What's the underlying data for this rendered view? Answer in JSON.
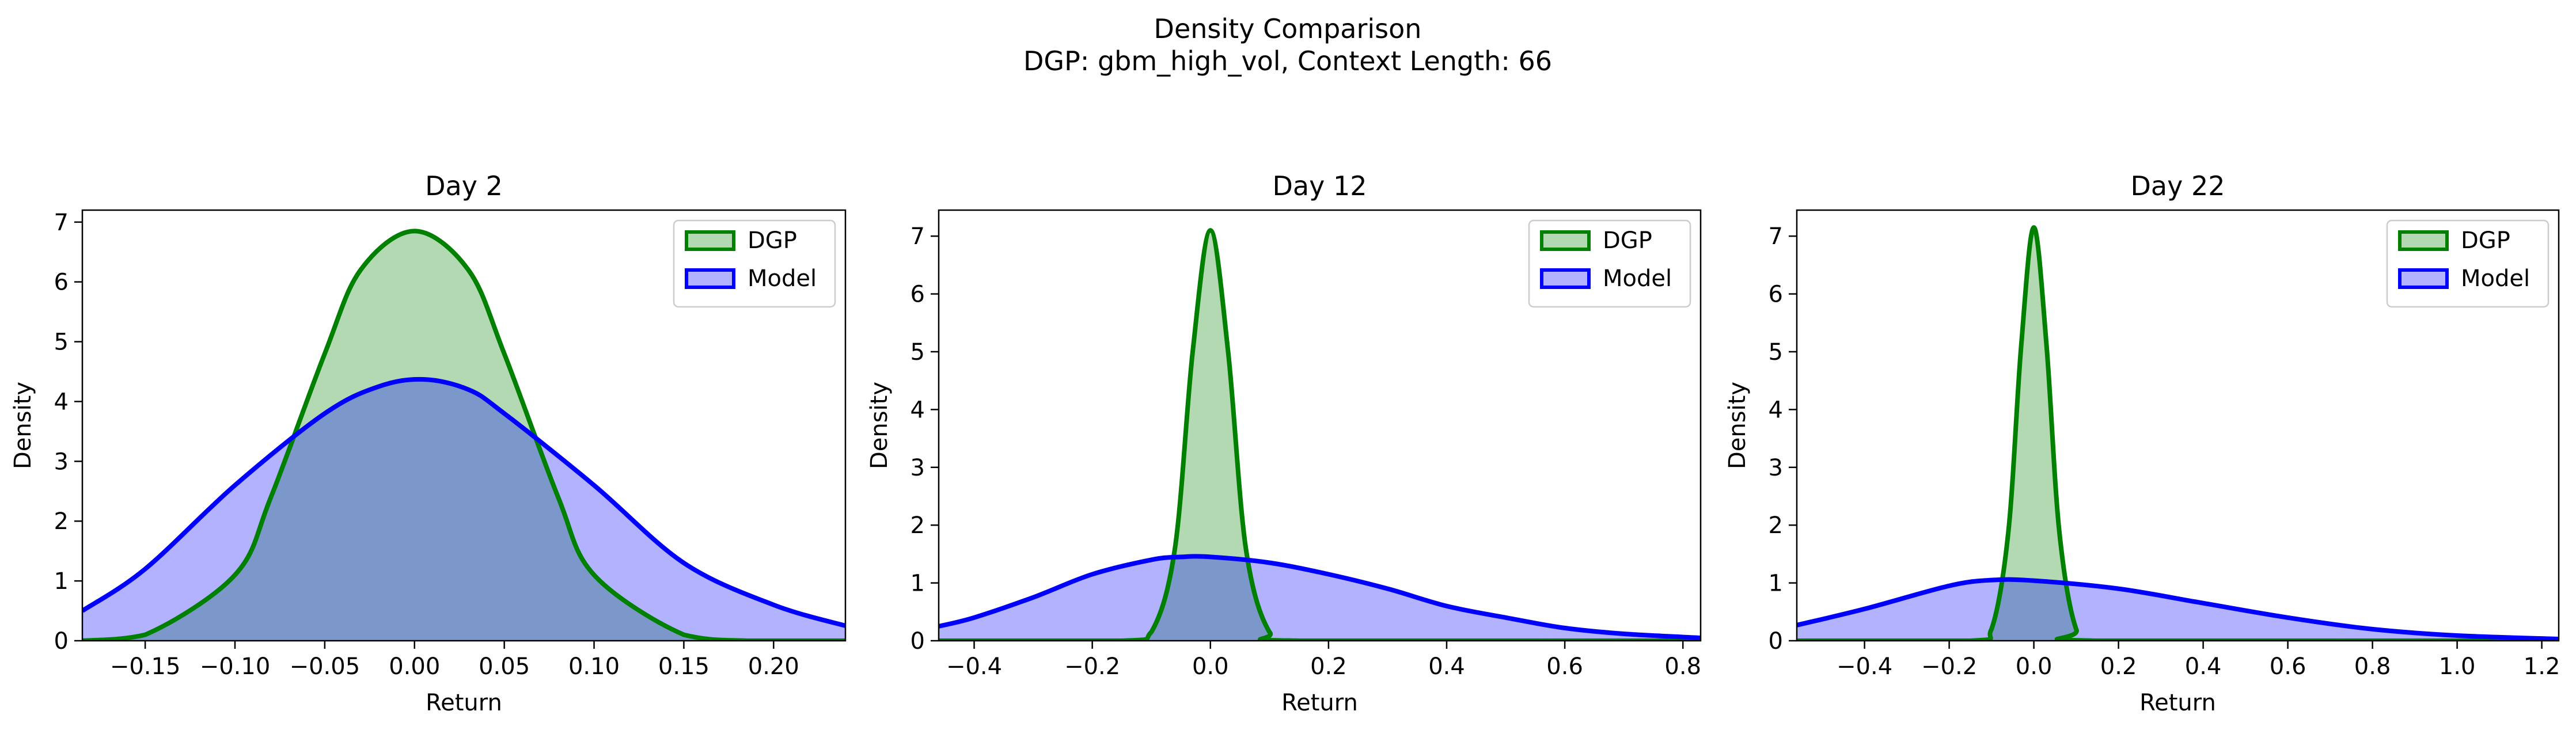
{
  "figure": {
    "title": "Density Comparison",
    "subtitle": "DGP: gbm_high_vol, Context Length: 66"
  },
  "colors": {
    "dgp": "#008000",
    "model": "#0000ff",
    "dgp_fill": "#008000",
    "model_fill": "#0000ff"
  },
  "chart_data": [
    {
      "type": "area",
      "title": "Day 2",
      "xlabel": "Return",
      "ylabel": "Density",
      "xlim": [
        -0.185,
        0.24
      ],
      "ylim": [
        0,
        7.2
      ],
      "xticks": [
        -0.15,
        -0.1,
        -0.05,
        0.0,
        0.05,
        0.1,
        0.15,
        0.2
      ],
      "xtick_labels": [
        "−0.15",
        "−0.10",
        "−0.05",
        "0.00",
        "0.05",
        "0.10",
        "0.15",
        "0.20"
      ],
      "yticks": [
        0,
        1,
        2,
        3,
        4,
        5,
        6,
        7
      ],
      "ytick_labels": [
        "0",
        "1",
        "2",
        "3",
        "4",
        "5",
        "6",
        "7"
      ],
      "legend": "top-right",
      "series": [
        {
          "name": "DGP",
          "x": [
            -0.185,
            -0.15,
            -0.1,
            -0.08,
            -0.05,
            -0.03,
            0.0,
            0.03,
            0.05,
            0.08,
            0.1,
            0.15,
            0.185,
            0.24
          ],
          "y": [
            0.0,
            0.1,
            1.1,
            2.4,
            4.8,
            6.2,
            6.85,
            6.2,
            4.8,
            2.4,
            1.1,
            0.1,
            0.0,
            0.0
          ]
        },
        {
          "name": "Model",
          "x": [
            -0.185,
            -0.15,
            -0.1,
            -0.05,
            -0.02,
            0.005,
            0.03,
            0.05,
            0.1,
            0.15,
            0.2,
            0.24
          ],
          "y": [
            0.5,
            1.2,
            2.6,
            3.8,
            4.25,
            4.37,
            4.2,
            3.8,
            2.6,
            1.3,
            0.6,
            0.25
          ]
        }
      ]
    },
    {
      "type": "area",
      "title": "Day 12",
      "xlabel": "Return",
      "ylabel": "Density",
      "xlim": [
        -0.46,
        0.83
      ],
      "ylim": [
        0,
        7.45
      ],
      "xticks": [
        -0.4,
        -0.2,
        0.0,
        0.2,
        0.4,
        0.6,
        0.8
      ],
      "xtick_labels": [
        "−0.4",
        "−0.2",
        "0.0",
        "0.2",
        "0.4",
        "0.6",
        "0.8"
      ],
      "yticks": [
        0,
        1,
        2,
        3,
        4,
        5,
        6,
        7
      ],
      "ytick_labels": [
        "0",
        "1",
        "2",
        "3",
        "4",
        "5",
        "6",
        "7"
      ],
      "legend": "top-right",
      "series": [
        {
          "name": "DGP",
          "x": [
            -0.46,
            -0.15,
            -0.1,
            -0.06,
            -0.03,
            0.0,
            0.03,
            0.06,
            0.1,
            0.15,
            0.83
          ],
          "y": [
            0.0,
            0.0,
            0.15,
            1.6,
            5.0,
            7.1,
            5.0,
            1.6,
            0.15,
            0.0,
            0.0
          ]
        },
        {
          "name": "Model",
          "x": [
            -0.46,
            -0.4,
            -0.3,
            -0.2,
            -0.1,
            -0.05,
            0.0,
            0.1,
            0.2,
            0.3,
            0.4,
            0.5,
            0.6,
            0.7,
            0.83
          ],
          "y": [
            0.25,
            0.4,
            0.75,
            1.15,
            1.4,
            1.45,
            1.45,
            1.35,
            1.15,
            0.9,
            0.6,
            0.4,
            0.22,
            0.12,
            0.05
          ]
        }
      ]
    },
    {
      "type": "area",
      "title": "Day 22",
      "xlabel": "Return",
      "ylabel": "Density",
      "xlim": [
        -0.56,
        1.24
      ],
      "ylim": [
        0,
        7.45
      ],
      "xticks": [
        -0.4,
        -0.2,
        0.0,
        0.2,
        0.4,
        0.6,
        0.8,
        1.0,
        1.2
      ],
      "xtick_labels": [
        "−0.4",
        "−0.2",
        "0.0",
        "0.2",
        "0.4",
        "0.6",
        "0.8",
        "1.0",
        "1.2"
      ],
      "yticks": [
        0,
        1,
        2,
        3,
        4,
        5,
        6,
        7
      ],
      "ytick_labels": [
        "0",
        "1",
        "2",
        "3",
        "4",
        "5",
        "6",
        "7"
      ],
      "legend": "top-right",
      "series": [
        {
          "name": "DGP",
          "x": [
            -0.56,
            -0.15,
            -0.1,
            -0.06,
            -0.03,
            0.0,
            0.03,
            0.06,
            0.1,
            0.15,
            1.24
          ],
          "y": [
            0.0,
            0.0,
            0.2,
            1.9,
            5.1,
            7.15,
            5.1,
            1.9,
            0.2,
            0.0,
            0.0
          ]
        },
        {
          "name": "Model",
          "x": [
            -0.56,
            -0.4,
            -0.2,
            -0.1,
            0.0,
            0.2,
            0.4,
            0.6,
            0.8,
            1.0,
            1.24
          ],
          "y": [
            0.27,
            0.55,
            0.95,
            1.05,
            1.04,
            0.9,
            0.65,
            0.4,
            0.2,
            0.09,
            0.03
          ]
        }
      ]
    }
  ]
}
